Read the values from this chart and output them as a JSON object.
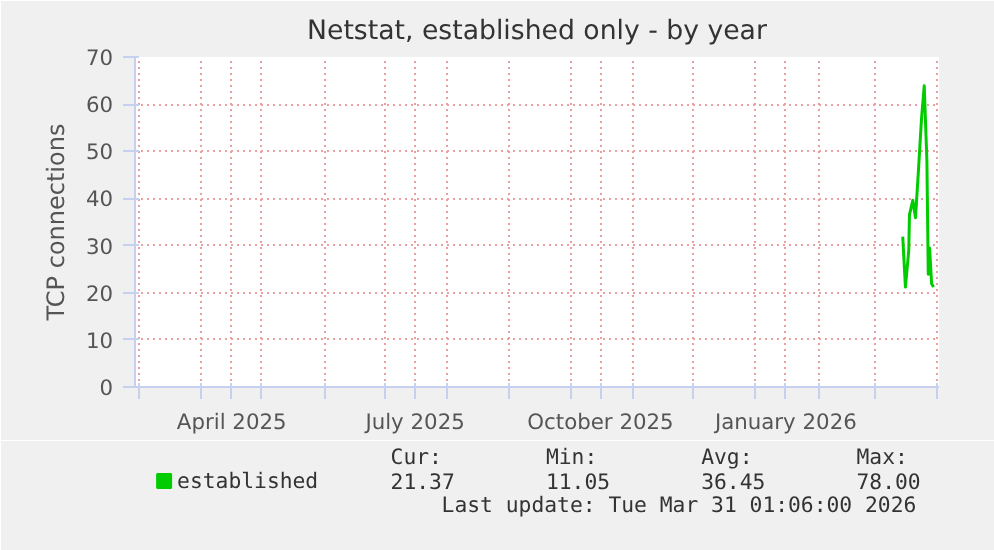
{
  "chart_data": {
    "type": "line",
    "title": "Netstat, established only - by year",
    "ylabel": "TCP connections",
    "x": [
      "2026-03-15",
      "2026-03-16T08:00",
      "2026-03-18",
      "2026-03-18T08:00",
      "2026-03-20",
      "2026-03-21T08:00",
      "2026-03-22T16:00",
      "2026-03-24T08:00",
      "2026-03-25T16:00",
      "2026-03-27",
      "2026-03-27T16:00",
      "2026-03-28T08:00",
      "2026-03-29T08:00",
      "2026-03-30T08:00"
    ],
    "series": [
      {
        "name": "established",
        "color": "#00cc00",
        "values": [
          31.9,
          21.2,
          29,
          36.5,
          39.6,
          35.9,
          45,
          57,
          63.9,
          47.9,
          23.9,
          29.5,
          21.9,
          21.2
        ]
      }
    ],
    "xlim": [
      "2025-02-27",
      "2026-04-02"
    ],
    "xticks": [
      {
        "value": "2025-03-01",
        "label": null
      },
      {
        "value": "2025-04-01",
        "label": null
      },
      {
        "value": "2025-04-16",
        "label": "April 2025"
      },
      {
        "value": "2025-05-01",
        "label": null
      },
      {
        "value": "2025-06-01",
        "label": null
      },
      {
        "value": "2025-07-01",
        "label": null
      },
      {
        "value": "2025-07-16",
        "label": "July 2025"
      },
      {
        "value": "2025-08-01",
        "label": null
      },
      {
        "value": "2025-09-01",
        "label": null
      },
      {
        "value": "2025-10-01",
        "label": null
      },
      {
        "value": "2025-10-16",
        "label": "October 2025"
      },
      {
        "value": "2025-11-01",
        "label": null
      },
      {
        "value": "2025-12-01",
        "label": null
      },
      {
        "value": "2026-01-01",
        "label": null
      },
      {
        "value": "2026-01-16",
        "label": "January 2026"
      },
      {
        "value": "2026-02-01",
        "label": null
      },
      {
        "value": "2026-03-01",
        "label": null
      },
      {
        "value": "2026-04-01",
        "label": null
      }
    ],
    "ylim": [
      0,
      70
    ],
    "yticks": [
      0,
      10,
      20,
      30,
      40,
      50,
      60,
      70
    ],
    "grid": true,
    "legend": "bottom",
    "marker": "none",
    "line_style": "solid",
    "annotations": [
      "Cur:",
      "Min:",
      "Avg:",
      "Max:",
      "21.37",
      "11.05",
      "36.45",
      "78.00",
      "Last update: Tue Mar 31 01:06:00 2026"
    ]
  }
}
